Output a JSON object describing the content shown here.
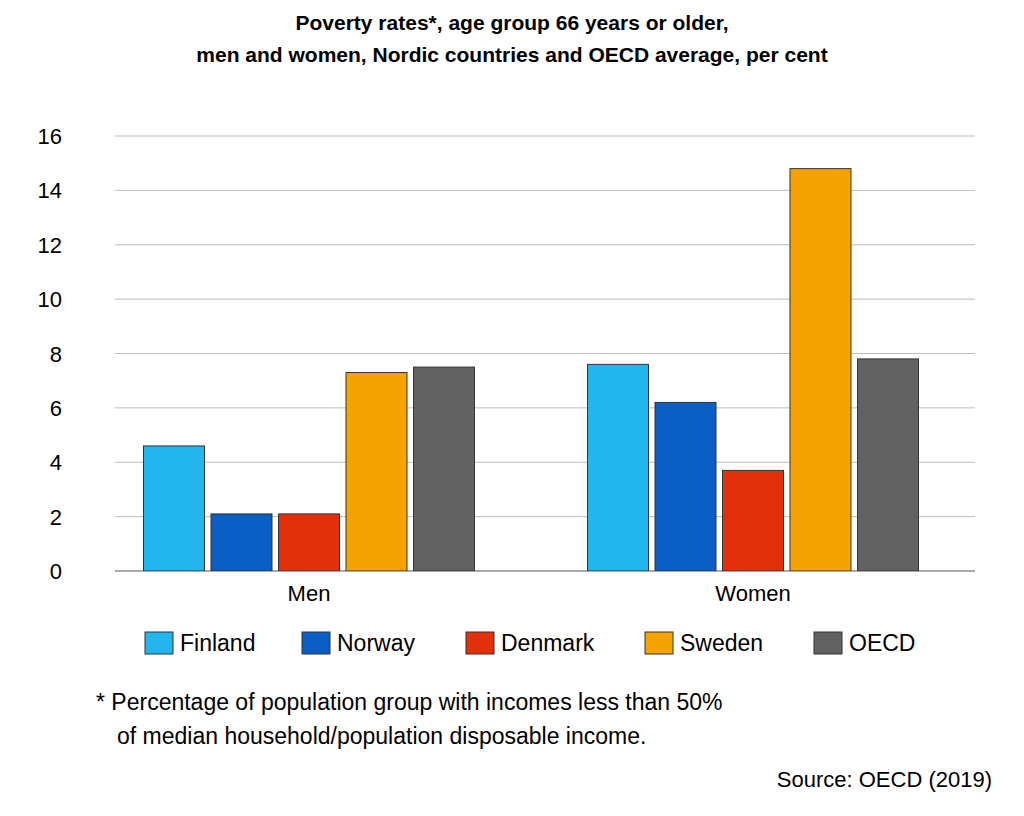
{
  "chart_data": {
    "type": "bar",
    "title": [
      "Poverty rates*, age group 66 years or older,",
      "men and women, Nordic countries and OECD average, per cent"
    ],
    "categories": [
      "Men",
      "Women"
    ],
    "series": [
      {
        "name": "Finland",
        "color": "#22b5ee",
        "values": [
          4.6,
          7.6
        ]
      },
      {
        "name": "Norway",
        "color": "#0b5ec4",
        "values": [
          2.1,
          6.2
        ]
      },
      {
        "name": "Denmark",
        "color": "#e2310a",
        "values": [
          2.1,
          3.7
        ]
      },
      {
        "name": "Sweden",
        "color": "#f5a300",
        "values": [
          7.3,
          14.8
        ]
      },
      {
        "name": "OECD",
        "color": "#626262",
        "values": [
          7.5,
          7.8
        ]
      }
    ],
    "ylim": [
      0,
      16
    ],
    "yticks": [
      0,
      2,
      4,
      6,
      8,
      10,
      12,
      14,
      16
    ],
    "grid": true,
    "legend": "bottom",
    "footnote": [
      "* Percentage of population group with incomes less than 50%",
      "of median household/population disposable income."
    ],
    "source": "Source: OECD (2019)"
  }
}
